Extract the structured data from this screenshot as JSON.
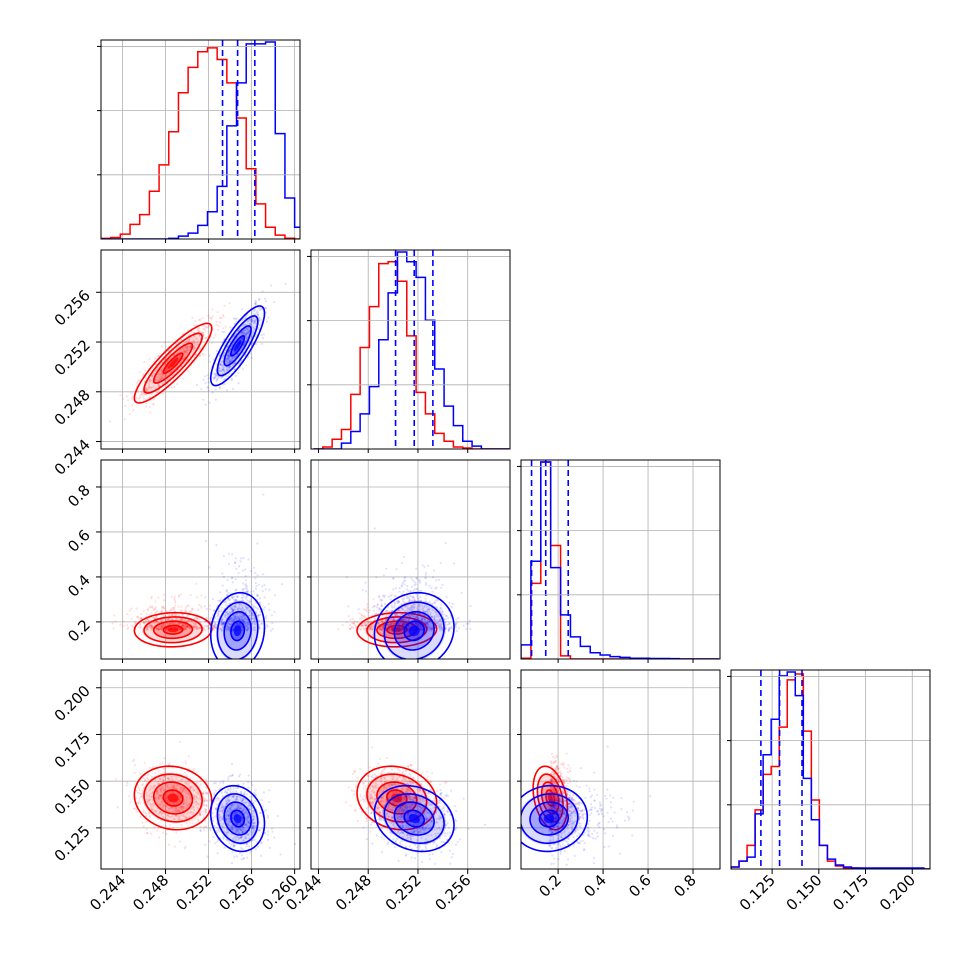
{
  "chart_data": {
    "type": "corner",
    "variables": 4,
    "colors": {
      "red": "#ff0000",
      "blue": "#0000ff",
      "grid": "#b0b0b0",
      "axes": "#000000"
    },
    "series": [
      {
        "color": "red"
      },
      {
        "color": "blue"
      }
    ],
    "ranges": [
      [
        0.242,
        0.2605
      ],
      [
        0.2434,
        0.2594
      ],
      [
        0.035,
        0.92
      ],
      [
        0.103,
        0.2095
      ]
    ],
    "axis_ticks": {
      "v0": [
        0.244,
        0.248,
        0.252,
        0.256,
        0.26
      ],
      "v1": [
        0.244,
        0.248,
        0.252,
        0.256
      ],
      "v2": [
        0.2,
        0.4,
        0.6,
        0.8
      ],
      "v3": [
        0.125,
        0.15,
        0.175,
        0.2
      ]
    },
    "tick_labels": {
      "v0": [
        "0.244",
        "0.248",
        "0.252",
        "0.256",
        "0.260"
      ],
      "v1": [
        "0.244",
        "0.248",
        "0.252",
        "0.256"
      ],
      "v2": [
        "0.2",
        "0.4",
        "0.6",
        "0.8"
      ],
      "v2_y": [
        "0.2",
        "0.4",
        "0.6",
        "0.8"
      ],
      "v3": [
        "0.125",
        "0.150",
        "0.175",
        "0.200"
      ]
    },
    "quantiles_blue": [
      [
        0.2533,
        0.2547,
        0.2563
      ],
      [
        0.2502,
        0.2517,
        0.2532
      ],
      [
        0.082,
        0.145,
        0.245
      ],
      [
        0.119,
        0.129,
        0.141
      ]
    ],
    "histograms": {
      "v0": {
        "edges_start": 0.242,
        "bin": 0.0009,
        "red": [
          0.3,
          0.8,
          2.5,
          7.5,
          12.5,
          24.5,
          38,
          55,
          75,
          88,
          96,
          98,
          92,
          80,
          62,
          36,
          18,
          6,
          2,
          0.4,
          0,
          0
        ],
        "blue": [
          0,
          0,
          0,
          0,
          0,
          0,
          0,
          0.3,
          1.5,
          3,
          7,
          14,
          27,
          58,
          80,
          100,
          100,
          101,
          54,
          21,
          6,
          0.5
        ]
      },
      "v1": {
        "edges_start": 0.2436,
        "bin": 0.00075,
        "red": [
          0,
          1,
          5,
          10,
          28,
          52,
          73,
          95,
          96,
          86,
          58,
          29,
          18,
          8,
          4,
          1,
          0.5,
          0,
          0,
          0,
          0
        ],
        "blue": [
          0,
          0,
          0,
          3,
          9,
          18,
          32,
          56,
          80,
          101,
          96,
          88,
          66,
          41,
          22,
          12,
          4,
          1.5,
          0,
          0,
          0
        ]
      },
      "v2": {
        "edges_start": 0.035,
        "bin": 0.044,
        "red": [
          0.5,
          48,
          125,
          72,
          2,
          0,
          0,
          0,
          0,
          0,
          0,
          0,
          0,
          0,
          0,
          0,
          0,
          0,
          0,
          0
        ],
        "blue": [
          9,
          62,
          125,
          58,
          28,
          14,
          8,
          4,
          2.5,
          1.5,
          1,
          0.5,
          0.5,
          0.3,
          0.3,
          0.2,
          0,
          0,
          0,
          0
        ]
      },
      "v3": {
        "edges_start": 0.103,
        "bin": 0.0043,
        "red": [
          1,
          4,
          12,
          30,
          48,
          52,
          72,
          96,
          99,
          70,
          35,
          12,
          4,
          1.5,
          0.5,
          0.5,
          0,
          0,
          0,
          0,
          0,
          0,
          0,
          0,
          0
        ],
        "blue": [
          1,
          4,
          6,
          28,
          58,
          76,
          98,
          100,
          88,
          46,
          25,
          12,
          5,
          2,
          1,
          0.5,
          0.5,
          0.5,
          0.5,
          0.5,
          0.5,
          0.5,
          0.5,
          0.5,
          0
        ]
      }
    },
    "gaussians": {
      "red": {
        "mean": [
          0.2487,
          0.2503,
          0.165,
          0.141
        ],
        "sd": [
          0.0018,
          0.0016,
          0.038,
          0.0085
        ],
        "corr": [
          [
            1,
            0.88,
            0.05,
            -0.1
          ],
          [
            0.88,
            1,
            0.05,
            -0.15
          ],
          [
            0.05,
            0.05,
            1,
            -0.3
          ],
          [
            -0.1,
            -0.15,
            -0.3,
            1
          ]
        ]
      },
      "blue": {
        "mean": [
          0.2547,
          0.2517,
          0.16,
          0.13
        ],
        "sd": [
          0.00125,
          0.0016,
          0.085,
          0.0088
        ],
        "corr": [
          [
            1,
            0.82,
            0.1,
            -0.15
          ],
          [
            0.82,
            1,
            0.1,
            -0.2
          ],
          [
            0.1,
            0.1,
            1,
            0.05
          ],
          [
            -0.15,
            -0.2,
            0.05,
            1
          ]
        ]
      }
    },
    "contour_levels_sigma": [
      0.5,
      1.0,
      1.5,
      2.0
    ],
    "scatter_points_per_series": 650
  }
}
